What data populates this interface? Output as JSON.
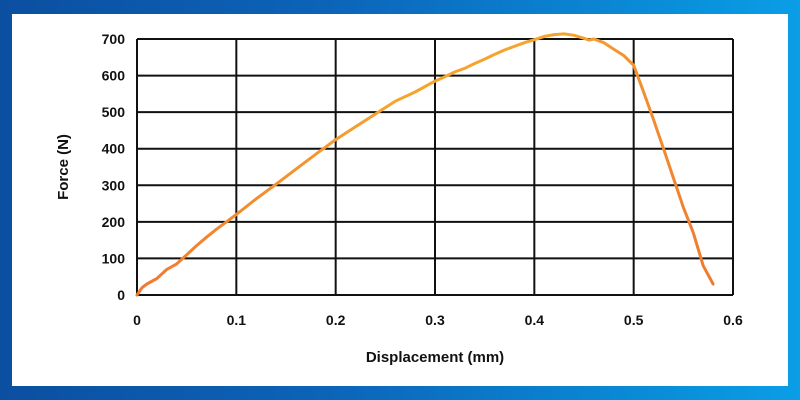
{
  "colors": {
    "background_left": "#0b4fa0",
    "background_right": "#0a9ee6",
    "panel": "#ffffff",
    "grid": "#111111",
    "line": "#f07a30",
    "line_peak": "#f5a42d"
  },
  "chart_data": {
    "type": "line",
    "title": "",
    "xlabel": "Displacement (mm)",
    "ylabel": "Force (N)",
    "xlim": [
      0,
      0.6
    ],
    "ylim": [
      0,
      700
    ],
    "xticks": [
      "0",
      "0.1",
      "0.2",
      "0.3",
      "0.4",
      "0.5",
      "0.6"
    ],
    "yticks": [
      "0",
      "100",
      "200",
      "300",
      "400",
      "500",
      "600",
      "700"
    ],
    "grid": true,
    "legend": "none",
    "series": [
      {
        "x": [
          0,
          0.005,
          0.01,
          0.02,
          0.03,
          0.04,
          0.05,
          0.06,
          0.07,
          0.08,
          0.09,
          0.1,
          0.12,
          0.14,
          0.16,
          0.18,
          0.2,
          0.22,
          0.24,
          0.26,
          0.28,
          0.3,
          0.31,
          0.32,
          0.33,
          0.34,
          0.35,
          0.36,
          0.37,
          0.38,
          0.39,
          0.4,
          0.41,
          0.42,
          0.43,
          0.44,
          0.45,
          0.455,
          0.46,
          0.47,
          0.48,
          0.49,
          0.5,
          0.51,
          0.52,
          0.53,
          0.54,
          0.55,
          0.56,
          0.57,
          0.58
        ],
        "values": [
          0,
          20,
          30,
          45,
          70,
          85,
          110,
          135,
          158,
          180,
          200,
          220,
          263,
          303,
          344,
          385,
          425,
          460,
          495,
          530,
          555,
          585,
          597,
          610,
          620,
          633,
          645,
          658,
          670,
          680,
          690,
          698,
          707,
          712,
          714,
          710,
          702,
          697,
          700,
          690,
          672,
          655,
          628,
          555,
          480,
          400,
          320,
          240,
          170,
          80,
          30
        ],
        "color": "#f07a30",
        "peak_color": "#f5a42d"
      }
    ]
  }
}
